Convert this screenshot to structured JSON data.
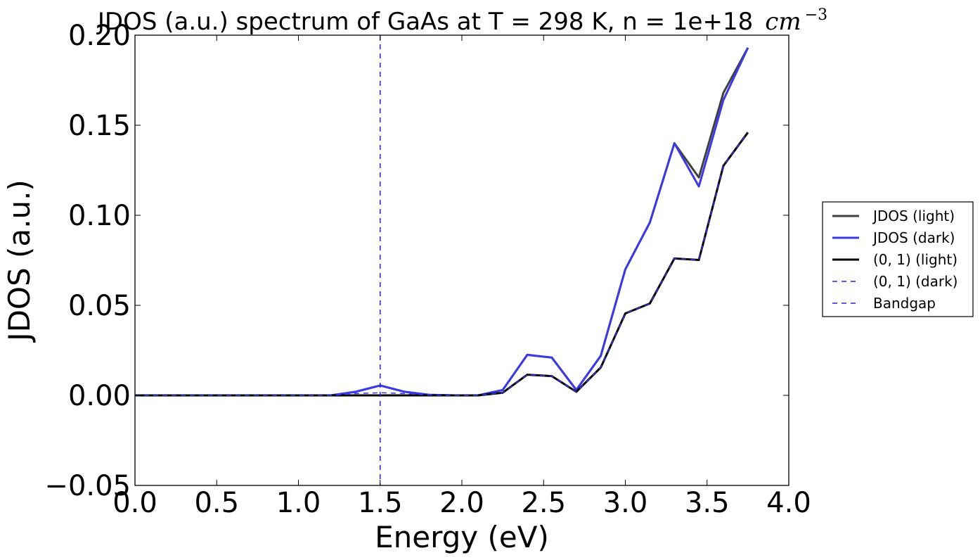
{
  "chart_data": {
    "type": "line",
    "title": "JDOS (a.u.) spectrum of GaAs at T = 298 K, n = 1e+18",
    "title_math": "cm",
    "title_math_sup": "−3",
    "xlabel": "Energy (eV)",
    "ylabel": "JDOS (a.u.)",
    "xlim": [
      0.0,
      4.0
    ],
    "ylim": [
      -0.05,
      0.2
    ],
    "xticks": [
      "0.0",
      "0.5",
      "1.0",
      "1.5",
      "2.0",
      "2.5",
      "3.0",
      "3.5",
      "4.0"
    ],
    "yticks": [
      "−0.05",
      "0.00",
      "0.05",
      "0.10",
      "0.15",
      "0.20"
    ],
    "grid": false,
    "legend_position": "outside-right",
    "x": [
      0.0,
      0.15,
      0.3,
      0.45,
      0.6,
      0.75,
      0.9,
      1.05,
      1.2,
      1.35,
      1.5,
      1.65,
      1.8,
      1.95,
      2.1,
      2.25,
      2.4,
      2.55,
      2.7,
      2.85,
      3.0,
      3.15,
      3.3,
      3.45,
      3.6,
      3.75
    ],
    "series": [
      {
        "name": "JDOS (light)",
        "color": "#404040",
        "style": "solid",
        "values": [
          0,
          0,
          0,
          0,
          0,
          0,
          0,
          0,
          0,
          0.002,
          0.0055,
          0.002,
          0.0003,
          0,
          0,
          0.003,
          0.0225,
          0.021,
          0.003,
          0.022,
          0.07,
          0.096,
          0.14,
          0.121,
          0.168,
          0.193
        ]
      },
      {
        "name": "JDOS (dark)",
        "color": "#3a3ae6",
        "style": "solid",
        "values": [
          0,
          0,
          0,
          0,
          0,
          0,
          0,
          0,
          0,
          0.002,
          0.0055,
          0.002,
          0.0003,
          0,
          0,
          0.003,
          0.0225,
          0.021,
          0.003,
          0.022,
          0.07,
          0.096,
          0.14,
          0.116,
          0.164,
          0.193
        ]
      },
      {
        "name": "(0, 1) (light)",
        "color": "#000000",
        "style": "solid",
        "values": [
          0,
          0,
          0,
          0,
          0,
          0,
          0,
          0,
          0,
          0,
          0,
          0,
          0,
          0,
          0,
          0.0015,
          0.0115,
          0.0107,
          0.002,
          0.0155,
          0.0455,
          0.051,
          0.076,
          0.0752,
          0.1275,
          0.146
        ]
      },
      {
        "name": "(0, 1) (dark)",
        "color": "#3a3ae6",
        "style": "dashed",
        "values": [
          0,
          0,
          0,
          0,
          0,
          0,
          0,
          0,
          0,
          0.001,
          0.0015,
          0.001,
          0.0002,
          0,
          0,
          0.0015,
          0.0115,
          0.0107,
          0.002,
          0.0155,
          0.0455,
          0.051,
          0.076,
          0.0752,
          0.1275,
          0.146
        ]
      }
    ],
    "vlines": [
      {
        "name": "Bandgap",
        "x": 1.5,
        "color": "#2424d6",
        "style": "dashed"
      }
    ],
    "legend": [
      {
        "label": "JDOS (light)",
        "color": "#404040",
        "style": "solid"
      },
      {
        "label": "JDOS (dark)",
        "color": "#3a3ae6",
        "style": "solid"
      },
      {
        "label": "(0, 1) (light)",
        "color": "#000000",
        "style": "solid"
      },
      {
        "label": "(0, 1) (dark)",
        "color": "#2424d6",
        "style": "dashed"
      },
      {
        "label": "Bandgap",
        "color": "#2424d6",
        "style": "dashed"
      }
    ]
  }
}
